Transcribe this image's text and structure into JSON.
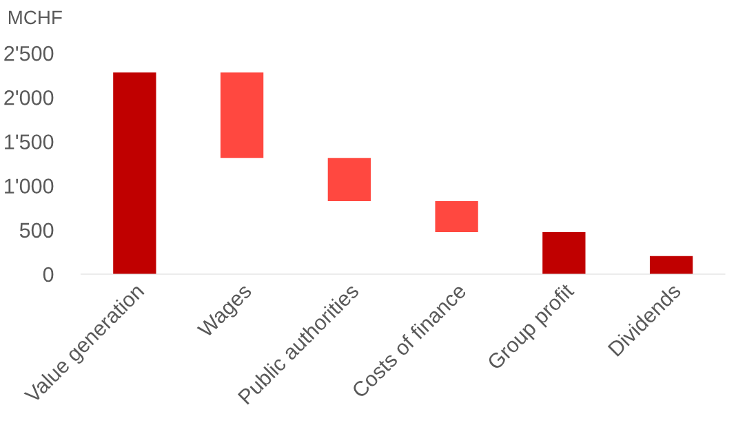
{
  "chart_data": {
    "type": "bar",
    "ylabel": "MCHF",
    "categories": [
      "Value generation",
      "Wages",
      "Public authorities",
      "Costs of finance",
      "Group profit",
      "Dividends"
    ],
    "values": [
      2280,
      965,
      490,
      350,
      475,
      205
    ],
    "base": [
      0,
      1315,
      825,
      475,
      0,
      0
    ],
    "colors": [
      "#c00000",
      "#ff4840",
      "#ff4840",
      "#ff4840",
      "#c00000",
      "#c00000"
    ],
    "ylim": [
      0,
      2500
    ],
    "yticks": [
      {
        "value": 0,
        "label": "0"
      },
      {
        "value": 500,
        "label": "500"
      },
      {
        "value": 1000,
        "label": "1'000"
      },
      {
        "value": 1500,
        "label": "1'500"
      },
      {
        "value": 2000,
        "label": "2'000"
      },
      {
        "value": 2500,
        "label": "2'500"
      }
    ],
    "grid": false
  }
}
